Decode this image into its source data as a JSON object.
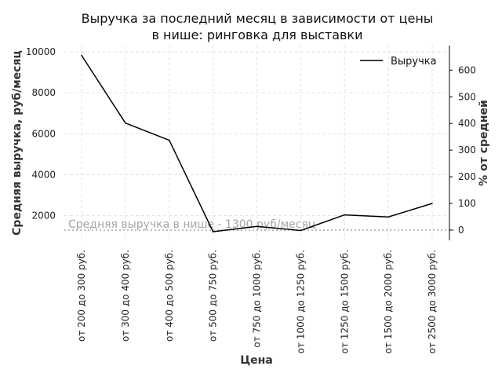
{
  "chart_data": {
    "type": "line",
    "title": [
      "Выручка за последний месяц в зависимости от цены",
      "в нише: ринговка для выставки"
    ],
    "xlabel": "Цена",
    "ylabel": "Средняя выручка, руб/месяц",
    "ylabel_right": "% от средней",
    "categories": [
      "от 200 до 300 руб.",
      "от 300 до 400 руб.",
      "от 400 до 500 руб.",
      "от 500 до 750 руб.",
      "от 750 до 1000 руб.",
      "от 1000 до 1250 руб.",
      "от 1250 до 1500 руб.",
      "от 1500 до 2000 руб.",
      "от 2500 до 3000 руб."
    ],
    "series": [
      {
        "name": "Выручка",
        "values": [
          9820,
          6520,
          5680,
          1220,
          1480,
          1280,
          2040,
          1940,
          2600
        ]
      }
    ],
    "ylim": [
      800,
      10300
    ],
    "y_ticks": [
      2000,
      4000,
      6000,
      8000,
      10000
    ],
    "ylim_right": [
      -38.5,
      692.3
    ],
    "y_ticks_right": [
      0,
      100,
      200,
      300,
      400,
      500,
      600
    ],
    "reference_line": {
      "value": 1300,
      "label": "Средняя выручка в нише - 1300 руб/месяц",
      "color": "#a6a6a6"
    },
    "legend": {
      "position": "top-right",
      "label": "Выручка"
    },
    "grid": true,
    "line_color": "#000000"
  }
}
